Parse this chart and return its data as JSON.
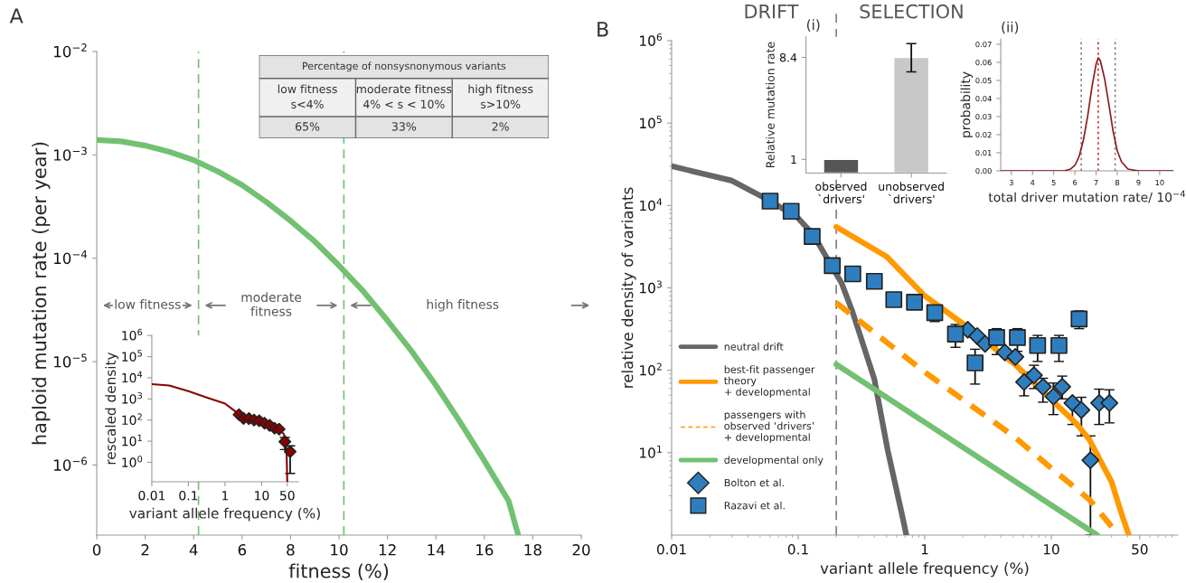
{
  "chart_data": [
    {
      "type": "line",
      "title": "A",
      "xlabel": "fitness (%)",
      "ylabel": "haploid mutation rate (per year)",
      "log": "y",
      "color": "#72c172",
      "x": [
        0,
        1,
        2,
        3,
        4,
        5,
        6,
        7,
        8,
        9,
        10,
        11,
        12,
        13,
        14,
        15,
        16,
        17,
        17.4
      ],
      "values": [
        0.00139,
        0.00135,
        0.00123,
        0.00107,
        0.00089,
        0.00069,
        0.00051,
        0.00035,
        0.00023,
        0.000145,
        8.5e-05,
        4.8e-05,
        2.5e-05,
        1.26e-05,
        5.9e-06,
        2.6e-06,
        1.1e-06,
        4.5e-07,
        2.1e-07
      ],
      "xlim": [
        0,
        20
      ],
      "xticks": [
        0,
        2,
        4,
        6,
        8,
        10,
        12,
        14,
        16,
        18,
        20
      ],
      "ylim": [
        2.1e-07,
        0.01
      ],
      "yticks": [
        {
          "value": 1e-06,
          "label": "10$^{−6}$"
        },
        {
          "value": 1e-05,
          "label": "10$^{−5}$"
        },
        {
          "value": 0.0001,
          "label": "10$^{−4}$"
        },
        {
          "value": 0.001,
          "label": "10$^{−3}$"
        },
        {
          "value": 0.01,
          "label": "10$^{−2}$"
        }
      ],
      "ref_lines": [
        {
          "axis": "x",
          "value": 4.2,
          "color": "#72c172",
          "line_style": "dashed"
        },
        {
          "axis": "x",
          "value": 10.2,
          "color": "#72c172",
          "line_style": "dashed"
        }
      ],
      "annotations": [
        "low fitness",
        "moderate\nfitness",
        "high fitness"
      ]
    },
    {
      "type": "other",
      "title": "Percentage of nonsysnonymous variants",
      "categories": [
        "low fitness\ns<4%",
        "moderate fitness\n4% < s < 10%",
        "high fitness\ns>10%"
      ],
      "values": [
        65,
        33,
        2
      ],
      "value_labels": [
        "65%",
        "33%",
        "2%"
      ]
    },
    {
      "type": "line",
      "xlabel": "variant allele frequency (%)",
      "ylabel": "rescaled density",
      "log": "xy",
      "xlim": [
        0.01,
        100
      ],
      "xticks": [
        0.01,
        0.1,
        1,
        10,
        50
      ],
      "ylim": [
        0.12,
        1000000
      ],
      "yticks": [
        {
          "value": 1,
          "label": "10$^{0}$"
        },
        {
          "value": 10,
          "label": "10$^{1}$"
        },
        {
          "value": 100,
          "label": "10$^{2}$"
        },
        {
          "value": 1000,
          "label": "10$^{3}$"
        },
        {
          "value": 10000,
          "label": "10$^{4}$"
        },
        {
          "value": 100000,
          "label": "10$^{5}$"
        },
        {
          "value": 1000000,
          "label": "10$^{6}$"
        }
      ],
      "series": [
        {
          "type": "line",
          "color": "#8b0000",
          "x": [
            0.01,
            0.03,
            0.1,
            0.3,
            1,
            2.4,
            5,
            10,
            20,
            30,
            40,
            45,
            48,
            50
          ],
          "values": [
            5000,
            4300,
            2300,
            1200,
            600,
            190,
            110,
            80,
            50,
            38,
            22,
            12,
            3,
            0.12
          ]
        },
        {
          "type": "scatter",
          "marker": "diamond",
          "color": "#8b0000",
          "x": [
            2.4,
            3.2,
            4.5,
            6.2,
            8.6,
            12,
            16.6,
            22.5,
            30,
            43,
            60
          ],
          "values": [
            180,
            120,
            117,
            100,
            93,
            71,
            56,
            41,
            37,
            9.5,
            3.2
          ],
          "errors": [
            null,
            null,
            null,
            null,
            null,
            null,
            null,
            null,
            null,
            [
              4,
              15
            ],
            [
              0.3,
              6
            ]
          ]
        }
      ]
    },
    {
      "type": "line",
      "title": "B",
      "xlabel": "variant allele frequency (%)",
      "ylabel": "relative density of variants",
      "log": "xy",
      "xlim": [
        0.01,
        100
      ],
      "xticks": [
        0.01,
        0.1,
        1,
        10,
        50
      ],
      "ylim": [
        1,
        1000000
      ],
      "yticks": [
        {
          "value": 10,
          "label": "10$^{1}$"
        },
        {
          "value": 100,
          "label": "10$^{2}$"
        },
        {
          "value": 1000,
          "label": "10$^{3}$"
        },
        {
          "value": 10000,
          "label": "10$^{4}$"
        },
        {
          "value": 100000,
          "label": "10$^{5}$"
        },
        {
          "value": 1000000,
          "label": "10$^{6}$"
        }
      ],
      "legend": "bottom left",
      "ref_lines": [
        {
          "axis": "x",
          "value": 0.2,
          "color": "#808080",
          "line_style": "dashed"
        }
      ],
      "annotations": [
        "DRIFT",
        "SELECTION"
      ],
      "series": [
        {
          "type": "line",
          "name": "neutral drift",
          "color": "#666666",
          "x": [
            0.01,
            0.03,
            0.061,
            0.1,
            0.132,
            0.22,
            0.269,
            0.4,
            0.51,
            0.66,
            0.716
          ],
          "values": [
            30000,
            20000,
            11200,
            7000,
            4400,
            1150,
            510,
            78,
            10.7,
            1.8,
            1
          ]
        },
        {
          "type": "line",
          "name": "best-fit passenger\ntheory\n+ developmental",
          "color": "#ff9900",
          "x": [
            0.2,
            0.5,
            1,
            2.2,
            5.2,
            16,
            20,
            30,
            36,
            41
          ],
          "values": [
            5500,
            2400,
            800,
            330,
            117,
            22,
            14.4,
            4.4,
            1.8,
            1
          ]
        },
        {
          "type": "line",
          "name": "passengers with\nobserved ‘drivers’\n+ developmental",
          "line_style": "dashed",
          "color": "#ff9900",
          "x": [
            0.2,
            1,
            5,
            10,
            20,
            34
          ],
          "values": [
            660,
            95,
            16,
            6.5,
            2.7,
            1
          ]
        },
        {
          "type": "line",
          "name": "developmental only",
          "color": "#72c172",
          "x": [
            0.2,
            23
          ],
          "values": [
            118,
            1
          ]
        },
        {
          "type": "scatter",
          "name": "Bolton et al.",
          "marker": "diamond",
          "color": "#2e7ebf",
          "x": [
            2.19,
            2.6,
            3.0,
            3.6,
            4.3,
            5.2,
            6.1,
            7.3,
            8.6,
            10.4,
            12.2,
            14.7,
            17.3,
            20.4,
            23.9,
            28.8
          ],
          "values": [
            310,
            260,
            210,
            null,
            165,
            145,
            72,
            87,
            63,
            48,
            63,
            40,
            33,
            8.1,
            40,
            40
          ],
          "errors": [
            null,
            null,
            null,
            null,
            null,
            null,
            [
              49,
              95
            ],
            [
              60,
              115
            ],
            [
              41,
              80
            ],
            [
              29,
              70
            ],
            [
              45,
              85
            ],
            [
              22,
              45
            ],
            [
              16,
              47
            ],
            [
              1,
              16
            ],
            [
              22,
              59
            ],
            [
              23,
              58
            ]
          ]
        },
        {
          "type": "scatter",
          "name": "Razavi et al.",
          "marker": "square",
          "color": "#2e7ebf",
          "x": [
            0.06,
            0.088,
            0.129,
            0.186,
            0.27,
            0.4,
            0.57,
            0.83,
            1.2,
            1.75,
            2.5,
            3.7,
            5.4,
            7.8,
            11.5,
            16.6
          ],
          "values": [
            11300,
            8500,
            4200,
            1860,
            1480,
            1200,
            720,
            670,
            500,
            275,
            123,
            250,
            250,
            200,
            200,
            420
          ],
          "errors": [
            null,
            null,
            null,
            null,
            null,
            null,
            [
              600,
              760
            ],
            null,
            [
              390,
              560
            ],
            [
              190,
              360
            ],
            [
              68,
              180
            ],
            [
              155,
              320
            ],
            [
              170,
              320
            ],
            [
              128,
              265
            ],
            [
              128,
              265
            ],
            [
              320,
              525
            ]
          ]
        }
      ]
    },
    {
      "type": "bar",
      "title": "(i)",
      "ylabel": "Relative mutation rate",
      "categories": [
        "observed\n`drivers'",
        "unobserved\n`drivers'"
      ],
      "values": [
        1,
        8.4
      ],
      "colors": [
        "#555555",
        "#c8c8c8"
      ],
      "errors": [
        null,
        [
          7.35,
          9.4
        ]
      ],
      "ylim": [
        0,
        9.9
      ],
      "yticks": [
        1,
        8.4
      ]
    },
    {
      "type": "line",
      "title": "(ii)",
      "xlabel": "total driver mutation rate/ 10$^{−4}$",
      "ylabel": "probability",
      "color": "#8b1a1a",
      "x": [
        2.5,
        5.5,
        5.8,
        6.0,
        6.2,
        6.4,
        6.6,
        6.8,
        7.0,
        7.1,
        7.2,
        7.4,
        7.6,
        7.8,
        8.0,
        8.2,
        8.5,
        9.0,
        10.65
      ],
      "values": [
        0,
        0,
        0.001,
        0.003,
        0.008,
        0.017,
        0.03,
        0.046,
        0.059,
        0.0625,
        0.061,
        0.051,
        0.037,
        0.022,
        0.011,
        0.005,
        0.001,
        0,
        0
      ],
      "xlim": [
        2.5,
        10.65
      ],
      "xticks": [
        3,
        4,
        5,
        6,
        7,
        8,
        9,
        10
      ],
      "ylim": [
        0,
        0.073
      ],
      "yticks": [
        {
          "value": 0,
          "label": "0.00"
        },
        {
          "value": 0.01,
          "label": "0.01"
        },
        {
          "value": 0.02,
          "label": "0.02"
        },
        {
          "value": 0.03,
          "label": "0.03"
        },
        {
          "value": 0.04,
          "label": "0.04"
        },
        {
          "value": 0.05,
          "label": "0.05"
        },
        {
          "value": 0.06,
          "label": "0.06"
        },
        {
          "value": 0.07,
          "label": "0.07"
        }
      ],
      "ref_lines": [
        {
          "axis": "x",
          "value": 6.3,
          "color": "#808080",
          "line_style": "dotted"
        },
        {
          "axis": "x",
          "value": 7.1,
          "color": "#cc3333",
          "line_style": "dotted"
        },
        {
          "axis": "x",
          "value": 7.9,
          "color": "#808080",
          "line_style": "dotted"
        }
      ]
    }
  ]
}
